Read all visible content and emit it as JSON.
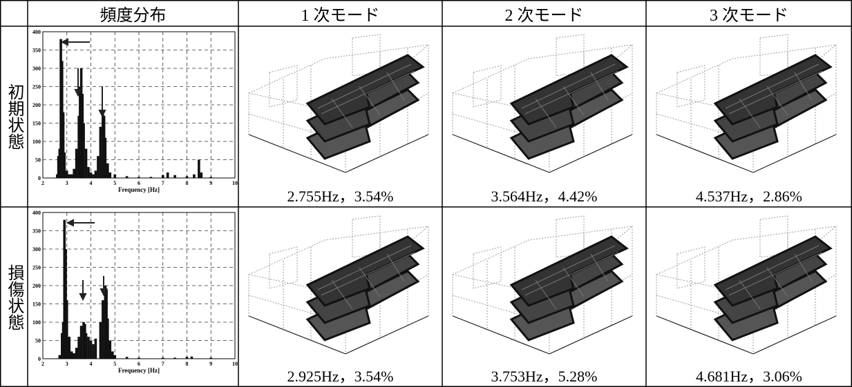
{
  "table": {
    "header": [
      "頻度分布",
      "1 次モード",
      "2 次モード",
      "3 次モード"
    ],
    "rows": [
      {
        "label": "初期状態",
        "modes": [
          "2.755Hz，3.54%",
          "3.564Hz，4.42%",
          "4.537Hz，2.86%"
        ]
      },
      {
        "label": "損傷状態",
        "modes": [
          "2.925Hz，3.54%",
          "3.753Hz，5.28%",
          "4.681Hz，3.06%"
        ]
      }
    ]
  },
  "chart_data": [
    {
      "type": "bar",
      "xlabel": "Frequency [Hz]",
      "color": "#111111",
      "grid": true,
      "xlim": [
        2,
        10
      ],
      "xticks": [
        2,
        3,
        4,
        5,
        6,
        7,
        8,
        9,
        10
      ],
      "ylim": [
        0,
        400
      ],
      "yticks": [
        0,
        50,
        100,
        150,
        200,
        250,
        300,
        350,
        400
      ],
      "x": [
        2.6,
        2.65,
        2.7,
        2.75,
        2.8,
        2.85,
        2.9,
        3.0,
        3.1,
        3.2,
        3.3,
        3.4,
        3.5,
        3.55,
        3.6,
        3.65,
        3.7,
        3.8,
        3.9,
        4.0,
        4.1,
        4.2,
        4.3,
        4.4,
        4.5,
        4.55,
        4.6,
        4.7,
        4.8,
        5.0,
        5.5,
        6.0,
        6.5,
        7.0,
        7.2,
        7.5,
        8.0,
        8.3,
        8.5,
        8.6,
        9.0
      ],
      "values": [
        10,
        60,
        80,
        380,
        320,
        180,
        70,
        20,
        10,
        10,
        25,
        80,
        170,
        250,
        300,
        230,
        150,
        80,
        30,
        15,
        10,
        20,
        60,
        140,
        175,
        170,
        110,
        40,
        15,
        10,
        5,
        3,
        3,
        8,
        15,
        8,
        5,
        10,
        50,
        15,
        3
      ]
    },
    {
      "type": "bar",
      "xlabel": "Frequency [Hz]",
      "color": "#111111",
      "grid": true,
      "xlim": [
        2,
        10
      ],
      "xticks": [
        2,
        3,
        4,
        5,
        6,
        7,
        8,
        9,
        10
      ],
      "ylim": [
        0,
        400
      ],
      "yticks": [
        0,
        50,
        100,
        150,
        200,
        250,
        300,
        350,
        400
      ],
      "x": [
        2.7,
        2.8,
        2.85,
        2.9,
        2.95,
        3.0,
        3.1,
        3.2,
        3.3,
        3.4,
        3.5,
        3.6,
        3.7,
        3.75,
        3.8,
        3.9,
        4.0,
        4.1,
        4.2,
        4.4,
        4.5,
        4.6,
        4.65,
        4.7,
        4.8,
        4.9,
        5.0,
        5.5,
        6.0,
        7.0,
        7.5,
        8.0,
        8.2,
        9.0
      ],
      "values": [
        10,
        70,
        100,
        380,
        300,
        160,
        60,
        20,
        15,
        30,
        60,
        90,
        100,
        95,
        70,
        60,
        50,
        40,
        55,
        100,
        160,
        200,
        190,
        110,
        50,
        20,
        10,
        5,
        3,
        3,
        3,
        5,
        6,
        3
      ]
    }
  ]
}
